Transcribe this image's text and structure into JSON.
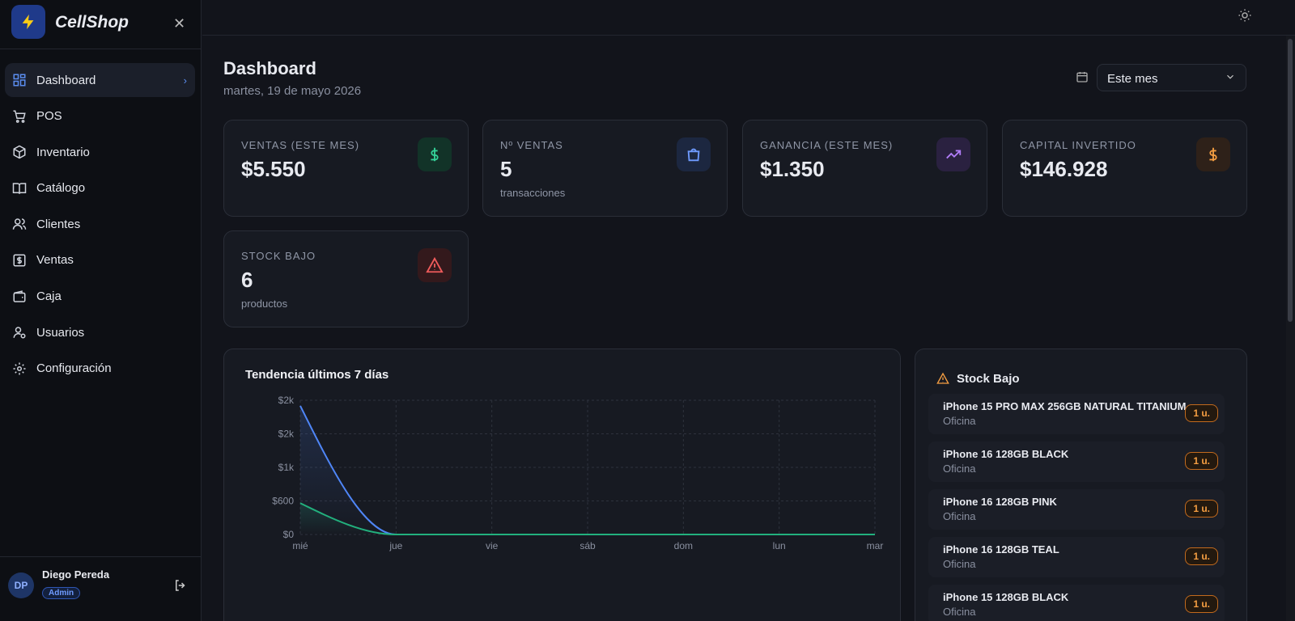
{
  "sidebar": {
    "brand": "CellShop",
    "nav": [
      "Dashboard",
      "POS",
      "Inventario",
      "Catálogo",
      "Clientes",
      "Ventas",
      "Caja",
      "Usuarios",
      "Configuración"
    ],
    "user": {
      "initials": "DP",
      "name": "Diego Pereda",
      "role": "Admin"
    }
  },
  "header": {
    "title": "Dashboard",
    "date": "martes, 19 de mayo 2026",
    "period": "Este mes"
  },
  "cards": [
    {
      "label": "VENTAS (ESTE MES)",
      "value": "$5.550"
    },
    {
      "label": "Nº VENTAS",
      "value": "5",
      "sub": "transacciones"
    },
    {
      "label": "GANANCIA (ESTE MES)",
      "value": "$1.350"
    },
    {
      "label": "CAPITAL INVERTIDO",
      "value": "$146.928"
    },
    {
      "label": "STOCK BAJO",
      "value": "6",
      "sub": "productos"
    }
  ],
  "chart_data": {
    "type": "line",
    "title": "Tendencia últimos 7 días",
    "categories": [
      "mié",
      "jue",
      "vie",
      "sáb",
      "dom",
      "lun",
      "mar"
    ],
    "series": [
      {
        "color": "#4f86f7",
        "values": [
          2300,
          0,
          0,
          0,
          0,
          0,
          0
        ]
      },
      {
        "color": "#22b07d",
        "values": [
          560,
          0,
          0,
          0,
          0,
          0,
          0
        ]
      }
    ],
    "ylim": [
      0,
      2400
    ],
    "yticks": [
      {
        "value": 0,
        "label": "$0"
      },
      {
        "value": 600,
        "label": "$600"
      },
      {
        "value": 1200,
        "label": "$1k"
      },
      {
        "value": 1800,
        "label": "$2k"
      },
      {
        "value": 2400,
        "label": "$2k"
      }
    ],
    "grid": true
  },
  "stock_low": {
    "title": "Stock Bajo",
    "items": [
      {
        "name": "iPhone 15 PRO MAX 256GB NATURAL TITANIUM",
        "location": "Oficina",
        "qty": "1 u."
      },
      {
        "name": "iPhone 16 128GB BLACK",
        "location": "Oficina",
        "qty": "1 u."
      },
      {
        "name": "iPhone 16 128GB PINK",
        "location": "Oficina",
        "qty": "1 u."
      },
      {
        "name": "iPhone 16 128GB TEAL",
        "location": "Oficina",
        "qty": "1 u."
      },
      {
        "name": "iPhone 15 128GB BLACK",
        "location": "Oficina",
        "qty": "1 u."
      }
    ]
  }
}
